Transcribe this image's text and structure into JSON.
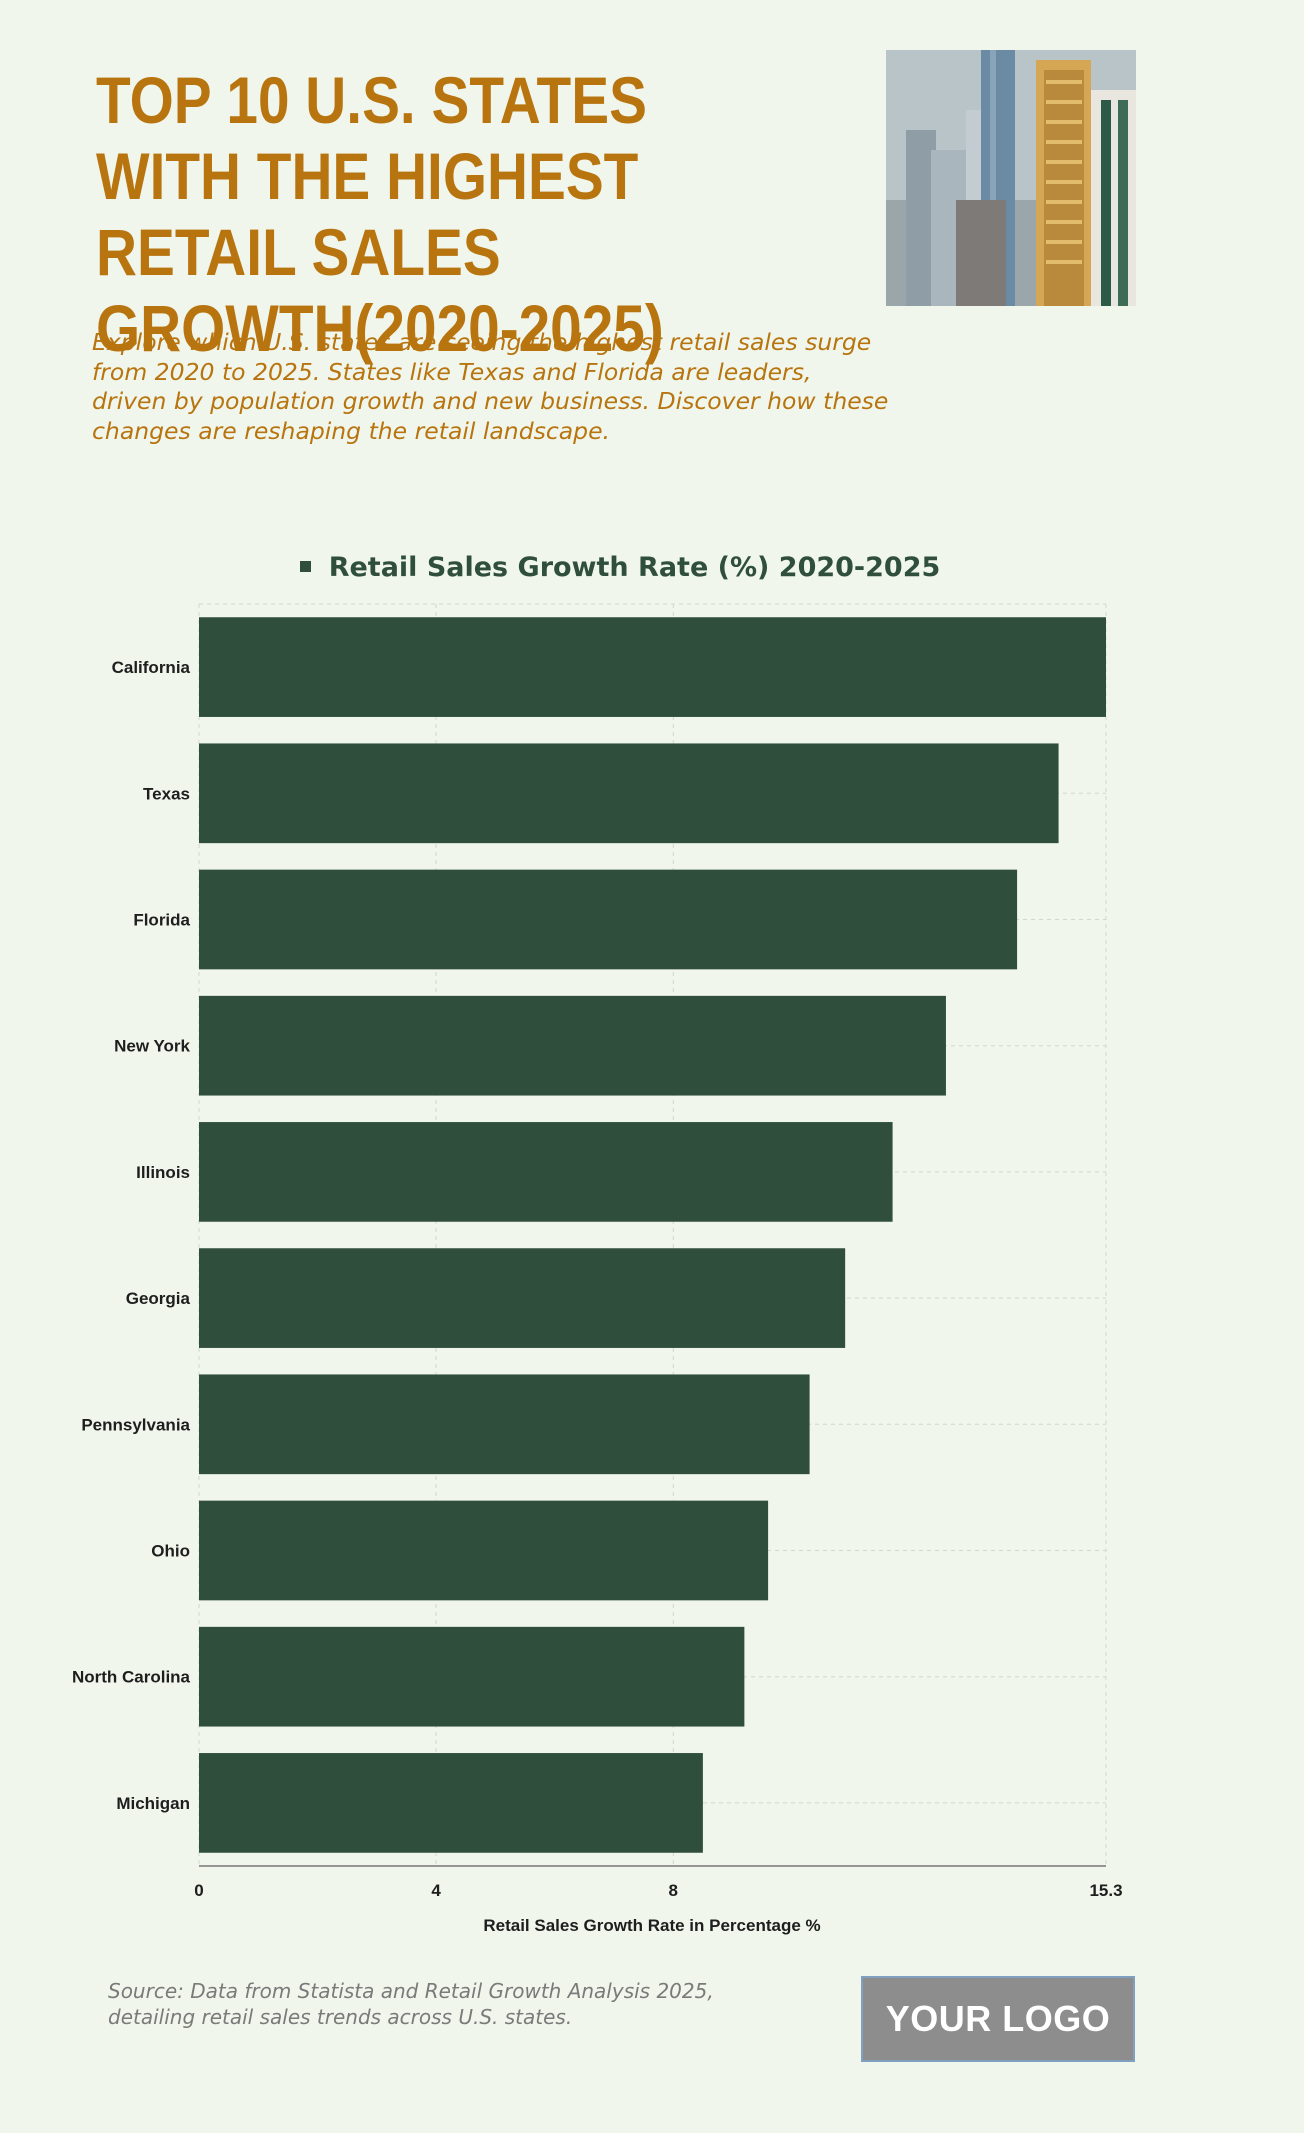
{
  "header": {
    "title": "TOP 10 U.S. STATES WITH THE HIGHEST RETAIL SALES GROWTH(2020-2025)",
    "subtitle": "Explore which U.S. states are seeing the highest retail sales surge from 2020 to 2025. States like Texas and Florida are leaders, driven by population growth and new business. Discover how these changes are reshaping the retail landscape."
  },
  "footer": {
    "source": "Source: Data from Statista and Retail Growth Analysis 2025, detailing retail sales trends across U.S. states.",
    "logo": "YOUR LOGO"
  },
  "colors": {
    "bar": "#2f4f3c",
    "title": "#b8740e",
    "background": "#f0f6ec"
  },
  "chart_data": {
    "type": "bar",
    "orientation": "horizontal",
    "legend": "Retail Sales Growth Rate (%) 2020-2025",
    "legend_position": "top-center",
    "xlabel": "Retail Sales Growth Rate in Percentage %",
    "ylabel": "",
    "xlim": [
      0,
      15.3
    ],
    "xticks": [
      "0",
      "4",
      "8",
      "15.3"
    ],
    "grid": true,
    "categories": [
      "California",
      "Texas",
      "Florida",
      "New York",
      "Illinois",
      "Georgia",
      "Pennsylvania",
      "Ohio",
      "North Carolina",
      "Michigan"
    ],
    "values": [
      15.3,
      14.5,
      13.8,
      12.6,
      11.7,
      10.9,
      10.3,
      9.6,
      9.2,
      8.5
    ]
  }
}
